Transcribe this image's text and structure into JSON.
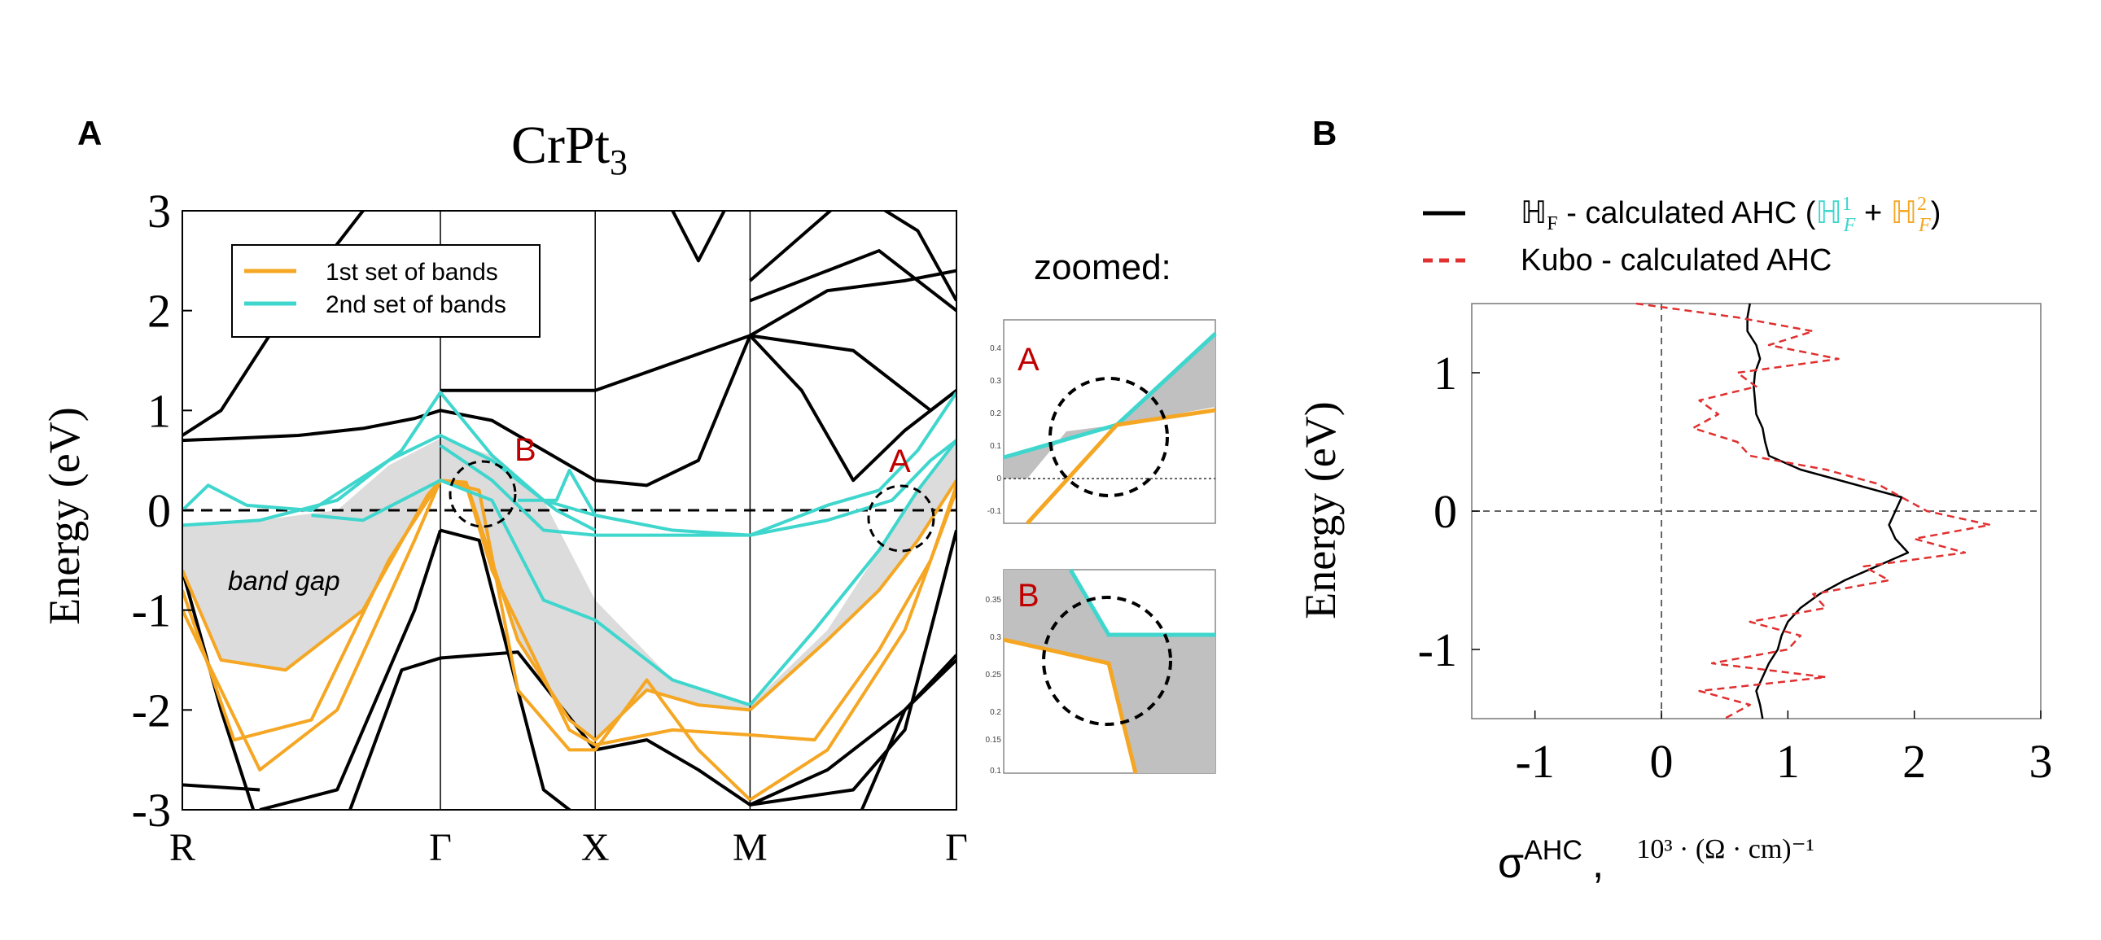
{
  "colors": {
    "band1": "#f5a623",
    "band2": "#3fd6cd",
    "black_bands": "#000000",
    "gap_fill": "#dcdcdc",
    "zoom_fill": "#c0c0c0",
    "marker_red": "#c00000",
    "kubo": "#e03030"
  },
  "panel_a": {
    "label": "A",
    "title_main": "CrPt",
    "title_sub": "3",
    "legend": {
      "band1": "1st set of bands",
      "band2": "2nd set of bands"
    },
    "band_gap_label": "band gap",
    "marker_a": "A",
    "marker_b": "B",
    "zoomed_label": "zoomed:",
    "zoom_a_label": "A",
    "zoom_b_label": "B",
    "zoom_a_ticks": [
      "0.4",
      "0.3",
      "0.2",
      "0.1",
      "0",
      "-0.1"
    ],
    "zoom_b_ticks": [
      "0.35",
      "0.3",
      "0.25",
      "0.2",
      "0.15",
      "0.1"
    ]
  },
  "panel_b": {
    "label": "B",
    "legend_black_prefix": "ℍ",
    "legend_black_sub": "F",
    "legend_black_text": " - calculated AHC (",
    "legend_h1": "ℍ",
    "legend_h1_sup": "1",
    "legend_h1_sub": "F",
    "legend_plus": " + ",
    "legend_h2": "ℍ",
    "legend_h2_sup": "2",
    "legend_h2_sub": "F",
    "legend_close": ")",
    "legend_red": "Kubo - calculated AHC",
    "xlabel_sigma": "σ",
    "xlabel_sup": "AHC",
    "xlabel_comma": ",",
    "xlabel_units": "10³ · (Ω · cm)⁻¹"
  },
  "chart_data": [
    {
      "type": "line",
      "title": "CrPt3",
      "xlabel": "",
      "ylabel": "Energy (eV)",
      "ylim": [
        -3,
        3
      ],
      "yticks": [
        "3",
        "2",
        "1",
        "0",
        "-1",
        "-2",
        "-3"
      ],
      "kpoints": [
        "R",
        "Γ",
        "X",
        "M",
        "Γ"
      ],
      "kpoint_positions": [
        0,
        1,
        1.6,
        2.2,
        3
      ],
      "x_range": [
        0,
        3
      ],
      "series": [
        {
          "name": "black",
          "style": "black",
          "x": [
            0,
            0.15,
            0.4,
            0.7,
            0.9,
            1.0
          ],
          "y": [
            0.75,
            1.0,
            2.0,
            3.0,
            3.4,
            3.5
          ]
        },
        {
          "name": "black",
          "style": "black",
          "x": [
            0,
            0.2,
            0.45,
            0.7,
            0.9,
            1.0
          ],
          "y": [
            0.7,
            0.72,
            0.75,
            0.82,
            0.92,
            1.0
          ]
        },
        {
          "name": "black",
          "style": "black",
          "x": [
            1.0,
            1.6,
            2.2
          ],
          "y": [
            1.2,
            1.2,
            1.75
          ]
        },
        {
          "name": "black",
          "style": "black",
          "x": [
            1.0,
            1.2,
            1.4,
            1.6,
            1.8,
            2.0,
            2.2
          ],
          "y": [
            1.0,
            0.9,
            0.6,
            0.3,
            0.25,
            0.5,
            1.75
          ]
        },
        {
          "name": "black",
          "style": "black",
          "x": [
            2.2,
            2.4,
            2.6,
            2.8,
            3.0
          ],
          "y": [
            1.75,
            1.2,
            0.3,
            0.8,
            1.2
          ]
        },
        {
          "name": "black",
          "style": "black",
          "x": [
            2.2,
            2.5,
            2.8,
            3.0
          ],
          "y": [
            1.75,
            2.2,
            2.3,
            2.4
          ]
        },
        {
          "name": "black",
          "style": "black",
          "x": [
            2.2,
            2.6,
            2.9,
            3.0
          ],
          "y": [
            1.75,
            1.6,
            1.0,
            1.2
          ]
        },
        {
          "name": "black",
          "style": "black",
          "x": [
            2.2,
            2.7,
            3.0
          ],
          "y": [
            2.1,
            2.6,
            2.0
          ]
        },
        {
          "name": "black",
          "style": "black",
          "x": [
            2.2,
            2.6,
            2.85,
            3.0
          ],
          "y": [
            2.3,
            3.2,
            2.8,
            2.1
          ]
        },
        {
          "name": "black",
          "style": "black",
          "x": [
            1.9,
            2.0,
            2.1
          ],
          "y": [
            3.0,
            2.5,
            3.0
          ]
        },
        {
          "name": "black",
          "style": "black",
          "x": [
            1.0,
            1.3,
            1.6
          ],
          "y": [
            -1.48,
            -1.42,
            -2.4
          ]
        },
        {
          "name": "black",
          "style": "black",
          "x": [
            0.65,
            0.85,
            1.0
          ],
          "y": [
            -3.0,
            -1.6,
            -1.48
          ]
        },
        {
          "name": "black",
          "style": "black",
          "x": [
            0.3,
            0.6,
            0.9,
            1.0
          ],
          "y": [
            -3.0,
            -2.8,
            -1.0,
            -0.2
          ]
        },
        {
          "name": "black",
          "style": "black",
          "x": [
            1.0,
            1.15,
            1.4,
            1.6
          ],
          "y": [
            -0.2,
            -0.3,
            -2.8,
            -3.2
          ]
        },
        {
          "name": "black",
          "style": "black",
          "x": [
            0,
            0.3
          ],
          "y": [
            -2.75,
            -2.8
          ]
        },
        {
          "name": "black",
          "style": "black",
          "x": [
            0,
            0.15,
            0.3
          ],
          "y": [
            -0.6,
            -2.0,
            -3.2
          ]
        },
        {
          "name": "black",
          "style": "black",
          "x": [
            1.6,
            1.8,
            2.0,
            2.2,
            2.6,
            2.8,
            3.0
          ],
          "y": [
            -2.4,
            -2.3,
            -2.6,
            -2.95,
            -2.8,
            -2.2,
            -0.2
          ]
        },
        {
          "name": "black",
          "style": "black",
          "x": [
            2.2,
            2.5,
            2.8,
            3.0
          ],
          "y": [
            -2.95,
            -2.6,
            -2.0,
            -1.5
          ]
        },
        {
          "name": "black",
          "style": "black",
          "x": [
            2.6,
            2.8,
            3.0
          ],
          "y": [
            -3.2,
            -2.0,
            -1.45
          ]
        },
        {
          "name": "1st set of bands",
          "style": "band1",
          "x": [
            0,
            0.15,
            0.4,
            0.7,
            0.95,
            1.0
          ],
          "y": [
            -0.6,
            -1.5,
            -1.6,
            -1.0,
            0.15,
            0.3
          ]
        },
        {
          "name": "1st set of bands",
          "style": "band1",
          "x": [
            0,
            0.2,
            0.5,
            0.8,
            1.0
          ],
          "y": [
            -0.8,
            -2.3,
            -2.1,
            -0.5,
            0.3
          ]
        },
        {
          "name": "1st set of bands",
          "style": "band1",
          "x": [
            0,
            0.3,
            0.6,
            0.9,
            1.0
          ],
          "y": [
            -1.0,
            -2.6,
            -2.0,
            -0.3,
            0.3
          ]
        },
        {
          "name": "1st set of bands",
          "style": "band1",
          "x": [
            1.0,
            1.1,
            1.3,
            1.5,
            1.6,
            1.8,
            2.0,
            2.2
          ],
          "y": [
            0.3,
            0.28,
            -1.3,
            -2.1,
            -2.3,
            -1.8,
            -1.95,
            -2.0
          ]
        },
        {
          "name": "1st set of bands",
          "style": "band1",
          "x": [
            1.0,
            1.1,
            1.2,
            1.5,
            1.6,
            1.9,
            2.2
          ],
          "y": [
            0.3,
            0.25,
            -0.6,
            -2.2,
            -2.35,
            -2.2,
            -2.25
          ]
        },
        {
          "name": "1st set of bands",
          "style": "band1",
          "x": [
            1.0,
            1.15,
            1.3,
            1.5,
            1.6,
            1.8,
            2.0,
            2.2
          ],
          "y": [
            0.3,
            0.2,
            -1.8,
            -2.4,
            -2.4,
            -1.7,
            -2.4,
            -2.9
          ]
        },
        {
          "name": "1st set of bands",
          "style": "band1",
          "x": [
            2.2,
            2.5,
            2.7,
            2.85,
            3.0
          ],
          "y": [
            -2.0,
            -1.3,
            -0.8,
            -0.3,
            0.3
          ]
        },
        {
          "name": "1st set of bands",
          "style": "band1",
          "x": [
            2.2,
            2.45,
            2.7,
            2.9,
            3.0
          ],
          "y": [
            -2.25,
            -2.3,
            -1.4,
            -0.5,
            0.25
          ]
        },
        {
          "name": "1st set of bands",
          "style": "band1",
          "x": [
            2.2,
            2.5,
            2.8,
            3.0
          ],
          "y": [
            -2.9,
            -2.4,
            -1.2,
            0.2
          ]
        },
        {
          "name": "2nd set of bands",
          "style": "band2",
          "x": [
            0,
            0.3,
            0.6,
            0.85,
            1.0,
            1.2,
            1.4,
            1.6,
            1.9,
            2.2
          ],
          "y": [
            -0.15,
            -0.1,
            0.1,
            0.6,
            1.18,
            0.55,
            0.1,
            -0.05,
            -0.2,
            -0.25
          ]
        },
        {
          "name": "2nd set of bands",
          "style": "band2",
          "x": [
            0,
            0.1,
            0.25,
            0.5,
            0.8,
            1.0,
            1.2,
            1.45,
            1.6
          ],
          "y": [
            0,
            0.25,
            0.05,
            0.0,
            0.5,
            0.75,
            0.5,
            0.0,
            -0.2
          ]
        },
        {
          "name": "2nd set of bands",
          "style": "band2",
          "x": [
            1.0,
            1.2,
            1.4,
            1.6,
            1.9,
            2.2
          ],
          "y": [
            0.65,
            0.3,
            -0.2,
            -0.25,
            -0.25,
            -0.25
          ]
        },
        {
          "name": "2nd set of bands",
          "style": "band2",
          "x": [
            1.3,
            1.45,
            1.5,
            1.6
          ],
          "y": [
            0.1,
            0.1,
            0.4,
            -0.05
          ]
        },
        {
          "name": "2nd set of bands",
          "style": "band2",
          "x": [
            0.5,
            0.7,
            1.0,
            1.2,
            1.4,
            1.6,
            1.9,
            2.2
          ],
          "y": [
            -0.05,
            -0.1,
            0.3,
            0.1,
            -0.9,
            -1.1,
            -1.7,
            -1.95
          ]
        },
        {
          "name": "2nd set of bands",
          "style": "band2",
          "x": [
            2.2,
            2.5,
            2.7,
            2.85,
            3.0
          ],
          "y": [
            -0.25,
            0.05,
            0.2,
            0.6,
            1.18
          ]
        },
        {
          "name": "2nd set of bands",
          "style": "band2",
          "x": [
            2.2,
            2.5,
            2.75,
            2.9,
            3.0
          ],
          "y": [
            -0.25,
            -0.1,
            0.1,
            0.5,
            0.7
          ]
        },
        {
          "name": "2nd set of bands",
          "style": "band2",
          "x": [
            2.2,
            2.45,
            2.7,
            2.85,
            3.0
          ],
          "y": [
            -1.95,
            -1.2,
            -0.4,
            0.2,
            0.7
          ]
        }
      ],
      "band_gap_upper": {
        "x": [
          0,
          0.3,
          0.6,
          0.8,
          1.0,
          1.2,
          1.4,
          1.6,
          1.9,
          2.2,
          2.5,
          2.7,
          2.85,
          3.0
        ],
        "y": [
          -0.15,
          -0.1,
          0.0,
          0.45,
          0.72,
          0.55,
          0.1,
          -0.9,
          -1.7,
          -1.95,
          -1.2,
          -0.4,
          0.2,
          0.7
        ]
      },
      "band_gap_lower": {
        "x": [
          0,
          0.15,
          0.4,
          0.7,
          0.95,
          1.0,
          1.1,
          1.3,
          1.5,
          1.6,
          1.8,
          2.0,
          2.2,
          2.5,
          2.7,
          2.85,
          3.0
        ],
        "y": [
          -0.6,
          -1.5,
          -1.6,
          -1.0,
          0.15,
          0.3,
          0.28,
          -1.3,
          -2.1,
          -2.3,
          -1.8,
          -1.95,
          -2.0,
          -1.3,
          -0.8,
          -0.3,
          0.3
        ]
      },
      "fermi_level": 0,
      "markers": [
        {
          "label": "B",
          "x": 1.15,
          "y": 0.15
        },
        {
          "label": "A",
          "x": 2.85,
          "y": -0.1
        }
      ]
    },
    {
      "type": "line",
      "title": "",
      "xlabel": "σAHC, 10³ · (Ω · cm)⁻¹",
      "ylabel": "Energy (eV)",
      "xlim": [
        -1.5,
        3.0
      ],
      "ylim": [
        -1.5,
        1.5
      ],
      "xticks": [
        "-1",
        "0",
        "1",
        "2",
        "3"
      ],
      "yticks": [
        "1",
        "0",
        "-1"
      ],
      "series": [
        {
          "name": "ℍF - calculated AHC (ℍ1F + ℍ2F)",
          "style": "solid",
          "y": [
            1.5,
            1.4,
            1.3,
            1.2,
            1.1,
            1.0,
            0.9,
            0.8,
            0.7,
            0.6,
            0.5,
            0.4,
            0.3,
            0.2,
            0.1,
            0.0,
            -0.1,
            -0.2,
            -0.3,
            -0.4,
            -0.5,
            -0.6,
            -0.7,
            -0.8,
            -0.9,
            -1.0,
            -1.1,
            -1.2,
            -1.3,
            -1.4,
            -1.5
          ],
          "x": [
            0.7,
            0.68,
            0.68,
            0.75,
            0.78,
            0.74,
            0.73,
            0.74,
            0.75,
            0.8,
            0.82,
            0.85,
            1.1,
            1.5,
            1.9,
            1.85,
            1.8,
            1.85,
            1.95,
            1.7,
            1.45,
            1.25,
            1.1,
            1.0,
            0.95,
            0.92,
            0.85,
            0.8,
            0.75,
            0.78,
            0.8
          ]
        },
        {
          "name": "Kubo - calculated AHC",
          "style": "dashed",
          "y": [
            1.5,
            1.4,
            1.3,
            1.2,
            1.1,
            1.0,
            0.9,
            0.8,
            0.7,
            0.6,
            0.5,
            0.4,
            0.3,
            0.2,
            0.1,
            0.0,
            -0.1,
            -0.2,
            -0.3,
            -0.4,
            -0.5,
            -0.6,
            -0.7,
            -0.8,
            -0.9,
            -1.0,
            -1.1,
            -1.2,
            -1.3,
            -1.4,
            -1.5
          ],
          "x": [
            -0.2,
            0.6,
            1.2,
            0.85,
            1.4,
            0.6,
            0.75,
            0.3,
            0.45,
            0.25,
            0.6,
            0.7,
            1.3,
            1.7,
            1.9,
            2.1,
            2.6,
            2.0,
            2.4,
            1.6,
            1.8,
            1.2,
            1.3,
            0.7,
            1.1,
            1.0,
            0.4,
            1.3,
            0.3,
            0.7,
            0.5
          ]
        }
      ],
      "zero_lines": {
        "x": 0,
        "y": 0
      }
    }
  ]
}
